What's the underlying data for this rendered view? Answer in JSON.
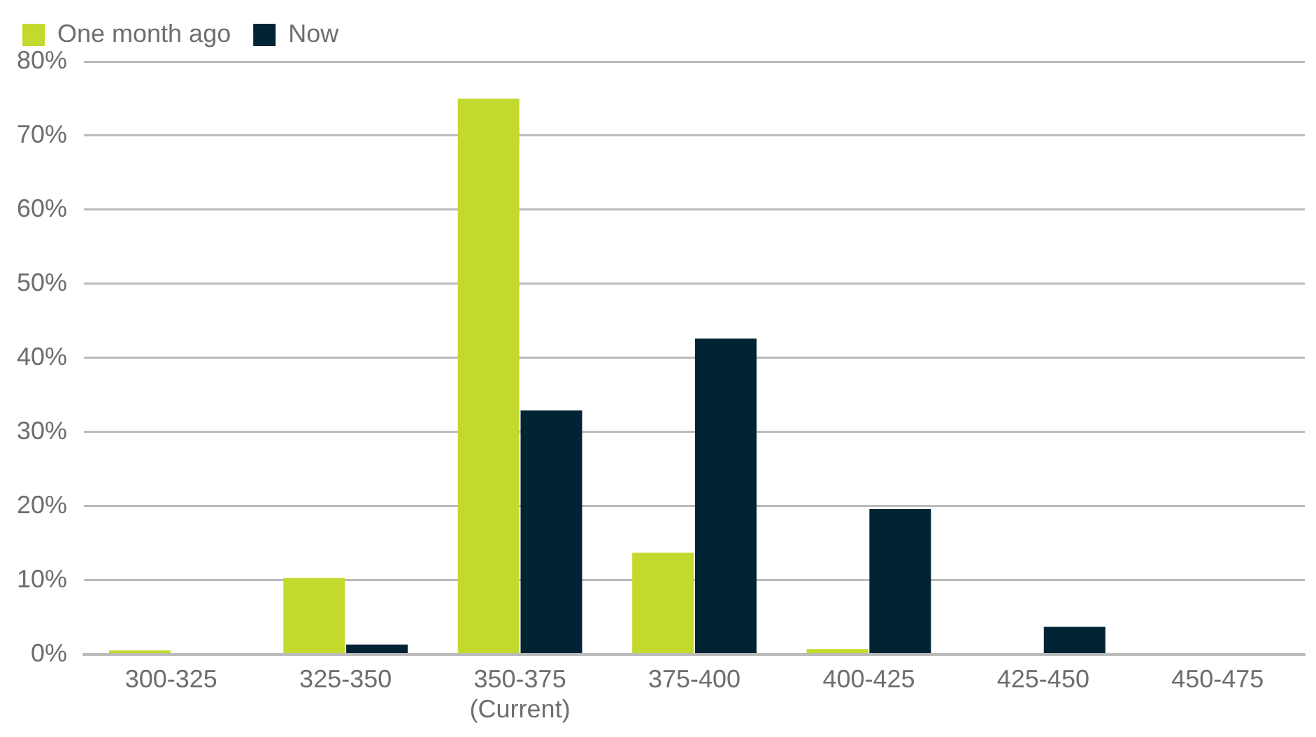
{
  "chart_data": {
    "type": "bar",
    "categories": [
      "300-325",
      "325-350",
      "350-375\n(Current)",
      "375-400",
      "400-425",
      "425-450",
      "450-475"
    ],
    "series": [
      {
        "name": "One month ago",
        "color": "#c3d92d",
        "values": [
          0.5,
          10.3,
          75,
          13.7,
          0.7,
          0,
          0
        ]
      },
      {
        "name": "Now",
        "color": "#002433",
        "values": [
          0,
          1.3,
          32.9,
          42.6,
          19.6,
          3.7,
          0
        ]
      }
    ],
    "ylim": [
      0,
      80
    ],
    "yticks": [
      {
        "value": 0,
        "label": "0%"
      },
      {
        "value": 10,
        "label": "10%"
      },
      {
        "value": 20,
        "label": "20%"
      },
      {
        "value": 30,
        "label": "30%"
      },
      {
        "value": 40,
        "label": "40%"
      },
      {
        "value": 50,
        "label": "50%"
      },
      {
        "value": 60,
        "label": "60%"
      },
      {
        "value": 70,
        "label": "70%"
      },
      {
        "value": 80,
        "label": "80%"
      }
    ],
    "grid": "y",
    "legend": "top left"
  }
}
